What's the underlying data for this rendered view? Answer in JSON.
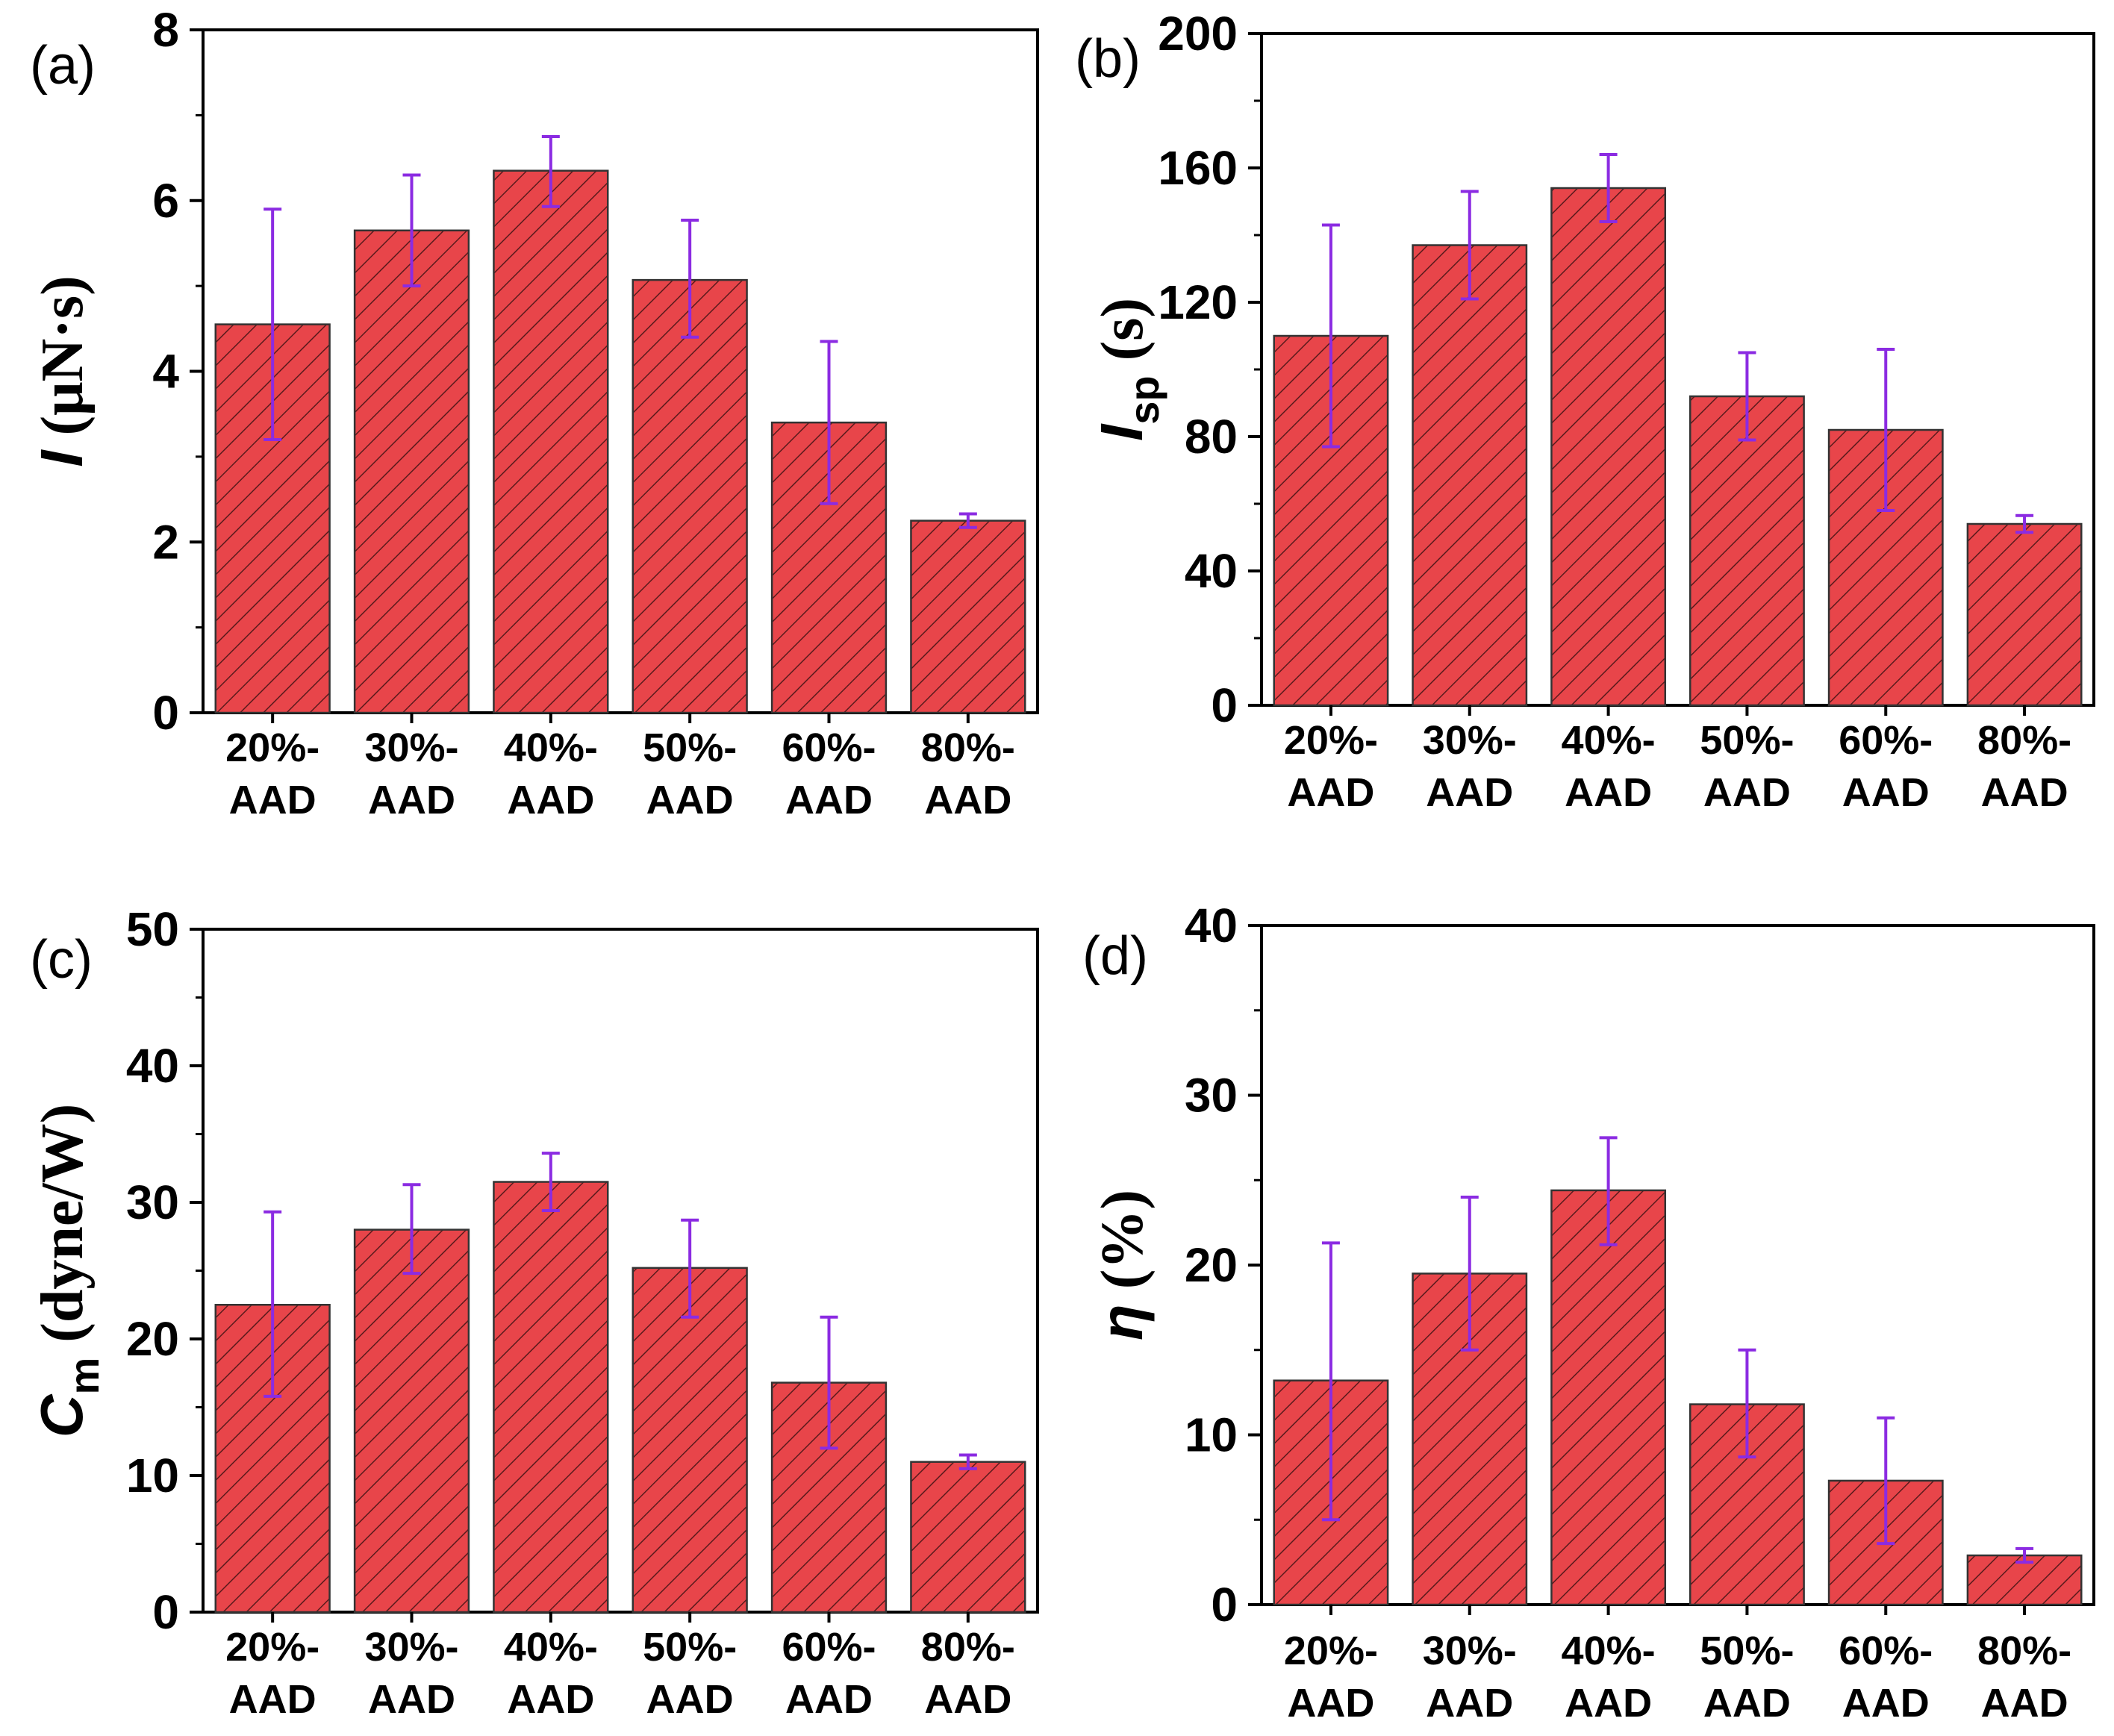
{
  "colors": {
    "bar_fill": "#e8454a",
    "hatch": "#5a1a1c",
    "error_bar": "#8b2be2",
    "axis": "#000000"
  },
  "panels": [
    {
      "label": "(a)",
      "ylabel": {
        "main": "I",
        "sub": "",
        "unit": " (μN·s)"
      },
      "yticks": [
        "0",
        "2",
        "4",
        "6",
        "8"
      ]
    },
    {
      "label": "(b)",
      "ylabel": {
        "main": "I",
        "sub": "sp",
        "unit": " (s)"
      },
      "yticks": [
        "0",
        "40",
        "80",
        "120",
        "160",
        "200"
      ]
    },
    {
      "label": "(c)",
      "ylabel": {
        "main": "C",
        "sub": "m",
        "unit": " (dyne/W)"
      },
      "yticks": [
        "0",
        "10",
        "20",
        "30",
        "40",
        "50"
      ]
    },
    {
      "label": "(d)",
      "ylabel": {
        "main": "η",
        "sub": "",
        "unit": " (%)"
      },
      "yticks": [
        "0",
        "10",
        "20",
        "30",
        "40"
      ]
    }
  ],
  "chart_data": [
    {
      "type": "bar",
      "categories": [
        [
          "20%-",
          "AAD"
        ],
        [
          "30%-",
          "AAD"
        ],
        [
          "40%-",
          "AAD"
        ],
        [
          "50%-",
          "AAD"
        ],
        [
          "60%-",
          "AAD"
        ],
        [
          "80%-",
          "AAD"
        ]
      ],
      "values": [
        4.55,
        5.65,
        6.35,
        5.07,
        3.4,
        2.25
      ],
      "error_low": [
        3.2,
        5.0,
        5.93,
        4.4,
        2.45,
        2.17
      ],
      "error_high": [
        5.9,
        6.3,
        6.75,
        5.77,
        4.35,
        2.33
      ],
      "ylim": [
        0,
        8
      ],
      "minor_step": 1,
      "title": "",
      "xlabel": "",
      "ylabel": "I (μN·s)"
    },
    {
      "type": "bar",
      "categories": [
        [
          "20%-",
          "AAD"
        ],
        [
          "30%-",
          "AAD"
        ],
        [
          "40%-",
          "AAD"
        ],
        [
          "50%-",
          "AAD"
        ],
        [
          "60%-",
          "AAD"
        ],
        [
          "80%-",
          "AAD"
        ]
      ],
      "values": [
        110,
        137,
        154,
        92,
        82,
        54
      ],
      "error_low": [
        77,
        121,
        144,
        79,
        58,
        51.5
      ],
      "error_high": [
        143,
        153,
        164,
        105,
        106,
        56.5
      ],
      "ylim": [
        0,
        200
      ],
      "minor_step": 20,
      "title": "",
      "xlabel": "",
      "ylabel": "Isp (s)"
    },
    {
      "type": "bar",
      "categories": [
        [
          "20%-",
          "AAD"
        ],
        [
          "30%-",
          "AAD"
        ],
        [
          "40%-",
          "AAD"
        ],
        [
          "50%-",
          "AAD"
        ],
        [
          "60%-",
          "AAD"
        ],
        [
          "80%-",
          "AAD"
        ]
      ],
      "values": [
        22.5,
        28,
        31.5,
        25.2,
        16.8,
        11
      ],
      "error_low": [
        15.8,
        24.8,
        29.4,
        21.6,
        12,
        10.5
      ],
      "error_high": [
        29.3,
        31.3,
        33.6,
        28.7,
        21.6,
        11.5
      ],
      "ylim": [
        0,
        50
      ],
      "minor_step": 5,
      "title": "",
      "xlabel": "",
      "ylabel": "Cm (dyne/W)"
    },
    {
      "type": "bar",
      "categories": [
        [
          "20%-",
          "AAD"
        ],
        [
          "30%-",
          "AAD"
        ],
        [
          "40%-",
          "AAD"
        ],
        [
          "50%-",
          "AAD"
        ],
        [
          "60%-",
          "AAD"
        ],
        [
          "80%-",
          "AAD"
        ]
      ],
      "values": [
        13.2,
        19.5,
        24.4,
        11.8,
        7.3,
        2.9
      ],
      "error_low": [
        5,
        15,
        21.2,
        8.7,
        3.6,
        2.5
      ],
      "error_high": [
        21.3,
        24,
        27.5,
        15,
        11,
        3.3
      ],
      "ylim": [
        0,
        40
      ],
      "minor_step": 5,
      "title": "",
      "xlabel": "",
      "ylabel": "η (%)"
    }
  ]
}
